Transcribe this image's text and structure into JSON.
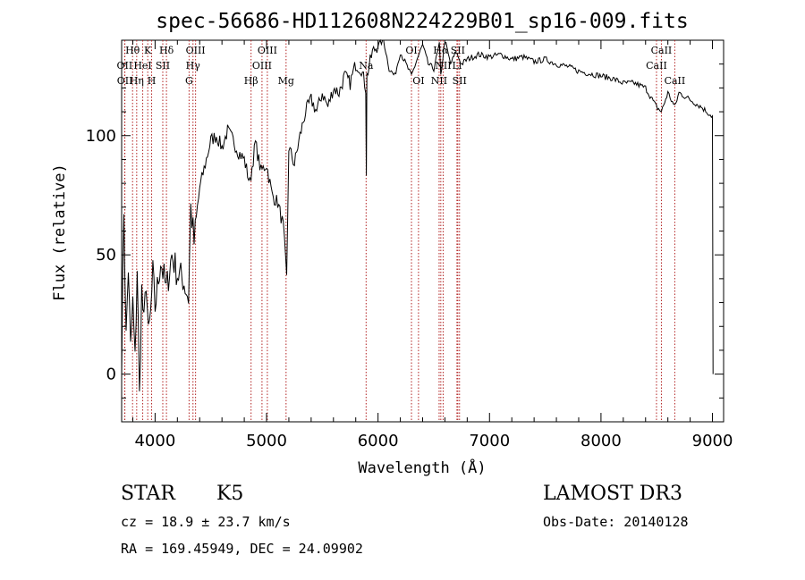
{
  "chart_data": {
    "type": "line",
    "title": "spec-56686-HD112608N224229B01_sp16-009.fits",
    "xlabel": "Wavelength (Å)",
    "ylabel": "Flux (relative)",
    "xlim": [
      3700,
      9100
    ],
    "ylim": [
      -20,
      140
    ],
    "xticks": [
      4000,
      5000,
      6000,
      7000,
      8000,
      9000
    ],
    "xtick_labels": [
      "4000",
      "5000",
      "6000",
      "7000",
      "8000",
      "9000"
    ],
    "yticks": [
      0,
      50,
      100
    ],
    "ytick_labels": [
      "0",
      "50",
      "100"
    ],
    "series": [
      {
        "name": "flux",
        "x": [
          3700,
          3720,
          3740,
          3760,
          3780,
          3800,
          3820,
          3840,
          3860,
          3880,
          3900,
          3920,
          3940,
          3960,
          3980,
          4000,
          4050,
          4100,
          4150,
          4200,
          4250,
          4300,
          4320,
          4350,
          4400,
          4450,
          4500,
          4550,
          4600,
          4650,
          4700,
          4750,
          4800,
          4850,
          4900,
          4950,
          5000,
          5050,
          5100,
          5150,
          5180,
          5200,
          5250,
          5300,
          5350,
          5400,
          5450,
          5500,
          5550,
          5600,
          5650,
          5700,
          5750,
          5800,
          5850,
          5890,
          5895,
          5900,
          5950,
          6000,
          6050,
          6100,
          6150,
          6200,
          6250,
          6300,
          6350,
          6400,
          6450,
          6500,
          6550,
          6563,
          6600,
          6650,
          6700,
          6750,
          6800,
          6900,
          7000,
          7100,
          7200,
          7300,
          7400,
          7500,
          7600,
          7700,
          7800,
          7900,
          8000,
          8100,
          8200,
          8300,
          8400,
          8498,
          8542,
          8600,
          8662,
          8700,
          8800,
          8900,
          8950,
          9000,
          9005
        ],
        "values": [
          5,
          70,
          15,
          45,
          10,
          30,
          5,
          45,
          -10,
          35,
          20,
          40,
          15,
          25,
          42,
          28,
          48,
          35,
          50,
          42,
          40,
          32,
          70,
          55,
          78,
          88,
          98,
          100,
          95,
          102,
          98,
          93,
          90,
          80,
          97,
          85,
          88,
          75,
          72,
          62,
          40,
          95,
          88,
          100,
          110,
          115,
          110,
          118,
          112,
          120,
          118,
          125,
          122,
          130,
          128,
          120,
          85,
          125,
          135,
          138,
          140,
          128,
          125,
          135,
          130,
          125,
          132,
          138,
          130,
          128,
          138,
          125,
          140,
          130,
          135,
          130,
          132,
          134,
          133,
          134,
          132,
          133,
          131,
          132,
          130,
          129,
          127,
          126,
          125,
          124,
          122,
          122,
          120,
          112,
          110,
          118,
          112,
          118,
          115,
          112,
          110,
          108,
          0
        ]
      }
    ],
    "line_markers": [
      {
        "label": "Hθ",
        "wavelength": 3798,
        "row": 1
      },
      {
        "label": "OII",
        "wavelength": 3727,
        "row": 2
      },
      {
        "label": "OII",
        "wavelength": 3729,
        "row": 3
      },
      {
        "label": "K",
        "wavelength": 3934,
        "row": 1
      },
      {
        "label": "HeI",
        "wavelength": 3889,
        "row": 2
      },
      {
        "label": "Hη",
        "wavelength": 3835,
        "row": 3
      },
      {
        "label": "Hδ",
        "wavelength": 4102,
        "row": 1
      },
      {
        "label": "SII",
        "wavelength": 4069,
        "row": 2
      },
      {
        "label": "H",
        "wavelength": 3969,
        "row": 3
      },
      {
        "label": "OIII",
        "wavelength": 4363,
        "row": 1
      },
      {
        "label": "Hγ",
        "wavelength": 4340,
        "row": 2
      },
      {
        "label": "G",
        "wavelength": 4305,
        "row": 3
      },
      {
        "label": "OIII",
        "wavelength": 5007,
        "row": 1
      },
      {
        "label": "OIII",
        "wavelength": 4959,
        "row": 2
      },
      {
        "label": "Hβ",
        "wavelength": 4861,
        "row": 3
      },
      {
        "label": "Mg",
        "wavelength": 5175,
        "row": 3
      },
      {
        "label": "Na",
        "wavelength": 5893,
        "row": 2
      },
      {
        "label": "OI",
        "wavelength": 6300,
        "row": 1
      },
      {
        "label": "OI",
        "wavelength": 6363,
        "row": 3
      },
      {
        "label": "Hα",
        "wavelength": 6563,
        "row": 1
      },
      {
        "label": "NII",
        "wavelength": 6548,
        "row": 3
      },
      {
        "label": "NII",
        "wavelength": 6584,
        "row": 2
      },
      {
        "label": "SII",
        "wavelength": 6716,
        "row": 1
      },
      {
        "label": "Li",
        "wavelength": 6708,
        "row": 2
      },
      {
        "label": "SII",
        "wavelength": 6731,
        "row": 3
      },
      {
        "label": "CaII",
        "wavelength": 8542,
        "row": 1
      },
      {
        "label": "CaII",
        "wavelength": 8498,
        "row": 2
      },
      {
        "label": "CaII",
        "wavelength": 8662,
        "row": 3
      }
    ],
    "grid": false,
    "legend": "none"
  },
  "info": {
    "class": "STAR",
    "subclass": "K5",
    "survey": "LAMOST DR3",
    "cz": "cz = 18.9 ± 23.7 km/s",
    "obs_date": "Obs-Date: 20140128",
    "coords": "RA = 169.45949, DEC =  24.09902"
  },
  "colors": {
    "spectrum": "#000000",
    "marker": "#b22222",
    "axes": "#000000"
  }
}
